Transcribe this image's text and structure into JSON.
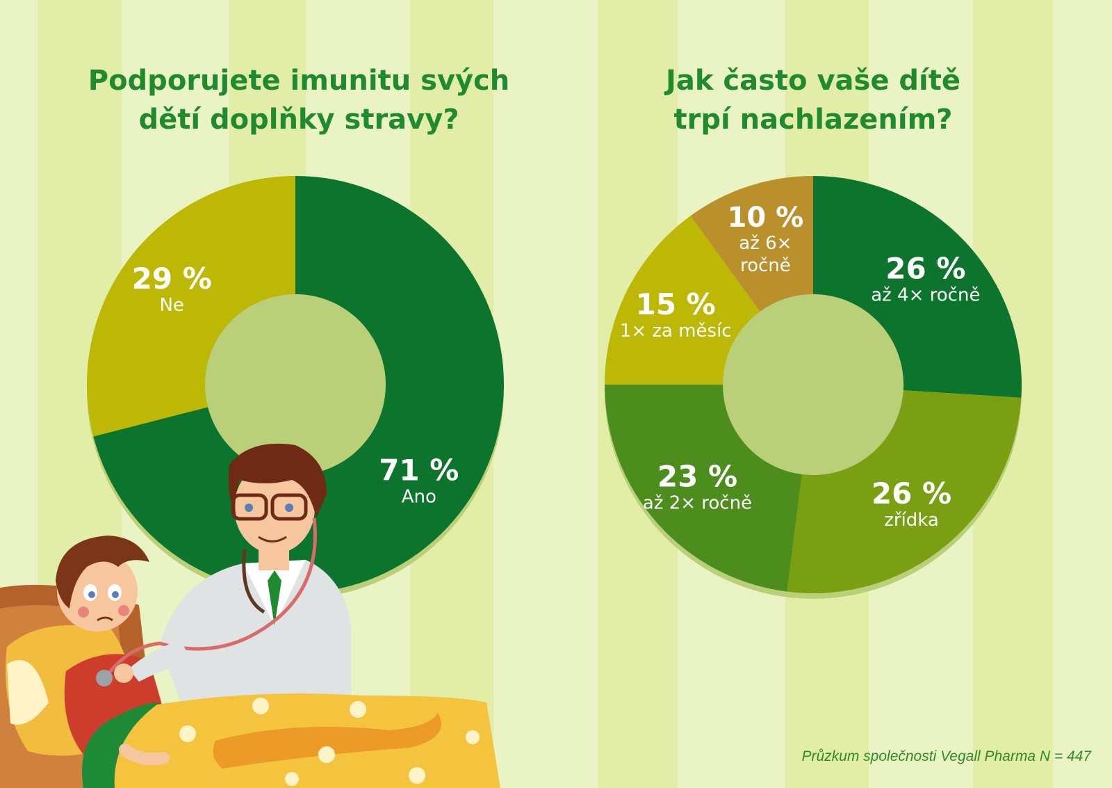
{
  "colors": {
    "dark_green": "#0c742c",
    "olive_yellow": "#bdb705",
    "mid_green": "#4d8d1e",
    "light_green": "#7b9f12",
    "bronze": "#b9902c",
    "title_green": "#1f8a2e",
    "background": "#eaf3c4"
  },
  "chart_data": [
    {
      "type": "pie",
      "style": "donut",
      "title": "Podporujete imunitu svých dětí doplňky stravy?",
      "title_lines": [
        "Podporujete imunitu svých",
        "dětí doplňky stravy?"
      ],
      "unit": "%",
      "slices": [
        {
          "label": "Ano",
          "value": 71,
          "value_text": "71 %",
          "color": "#0c742c"
        },
        {
          "label": "Ne",
          "value": 29,
          "value_text": "29 %",
          "color": "#bdb705"
        }
      ]
    },
    {
      "type": "pie",
      "style": "donut",
      "title": "Jak často vaše dítě trpí nachlazením?",
      "title_lines": [
        "Jak často vaše dítě",
        "trpí nachlazením?"
      ],
      "unit": "%",
      "slices": [
        {
          "label": "až 4× ročně",
          "value": 26,
          "value_text": "26 %",
          "color": "#0c742c"
        },
        {
          "label": "zřídka",
          "value": 26,
          "value_text": "26 %",
          "color": "#7b9f12"
        },
        {
          "label": "až 2× ročně",
          "value": 23,
          "value_text": "23 %",
          "color": "#4d8d1e"
        },
        {
          "label": "1× za měsíc",
          "value": 15,
          "value_text": "15 %",
          "color": "#bdb705"
        },
        {
          "label": "až 6× ročně",
          "label_lines": [
            "až 6×",
            "ročně"
          ],
          "value": 10,
          "value_text": "10 %",
          "color": "#b9902c"
        }
      ]
    }
  ],
  "footer": "Průzkum společnosti Vegall Pharma N = 447",
  "illustration": {
    "icon": "doctor-examining-sick-child-icon"
  }
}
